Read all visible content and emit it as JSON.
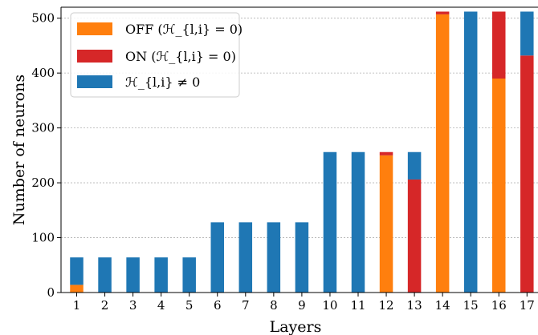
{
  "chart_data": {
    "type": "bar",
    "stacked": true,
    "categories": [
      "1",
      "2",
      "3",
      "4",
      "5",
      "6",
      "7",
      "8",
      "9",
      "10",
      "11",
      "12",
      "13",
      "14",
      "15",
      "16",
      "17"
    ],
    "series": [
      {
        "name": "OFF (ℋ_{l,i} = 0)",
        "color": "#ff7f0e",
        "values": [
          14,
          0,
          0,
          0,
          0,
          0,
          0,
          0,
          0,
          0,
          0,
          250,
          0,
          507,
          0,
          390,
          0
        ]
      },
      {
        "name": "ON (ℋ_{l,i} = 0)",
        "color": "#d62728",
        "values": [
          0,
          0,
          0,
          0,
          0,
          0,
          0,
          0,
          0,
          0,
          0,
          6,
          206,
          5,
          0,
          122,
          432
        ]
      },
      {
        "name": "ℋ_{l,i} ≠ 0",
        "color": "#1f77b4",
        "values": [
          50,
          64,
          64,
          64,
          64,
          128,
          128,
          128,
          128,
          256,
          256,
          0,
          50,
          0,
          512,
          0,
          80
        ]
      }
    ],
    "xlabel": "Layers",
    "ylabel": "Number of neurons",
    "ylim": [
      0,
      520
    ],
    "yticks": [
      0,
      100,
      200,
      300,
      400,
      500
    ],
    "grid": "horizontal",
    "legend_position": "top-left"
  }
}
